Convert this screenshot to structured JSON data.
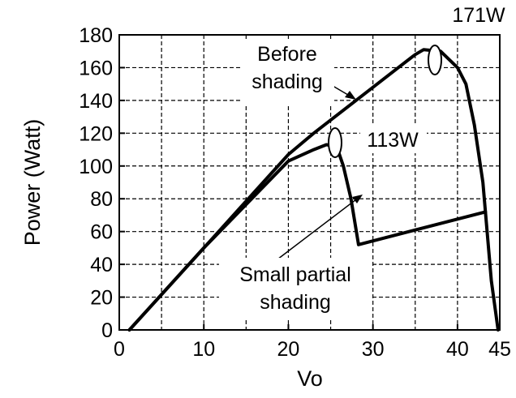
{
  "chart_data": {
    "type": "line",
    "title": "",
    "xlabel": "Vo",
    "ylabel": "Power (Watt)",
    "xlim": [
      0,
      45
    ],
    "ylim": [
      0,
      180
    ],
    "grid": true,
    "x_ticks": [
      0,
      10,
      20,
      30,
      40,
      45
    ],
    "x_tick_labels": [
      "0",
      "10",
      "20",
      "30",
      "40",
      "45"
    ],
    "y_ticks": [
      0,
      20,
      40,
      60,
      80,
      100,
      120,
      140,
      160,
      180
    ],
    "y_tick_labels": [
      "0",
      "20",
      "40",
      "60",
      "80",
      "100",
      "120",
      "140",
      "160",
      "180"
    ],
    "series": [
      {
        "points": [
          [
            1.2,
            0
          ],
          [
            10,
            50
          ],
          [
            20,
            107
          ],
          [
            23,
            120
          ],
          [
            30,
            148
          ],
          [
            33,
            160
          ],
          [
            35,
            168
          ],
          [
            36,
            171
          ],
          [
            38,
            170
          ],
          [
            40,
            160
          ],
          [
            41,
            150
          ],
          [
            42,
            125
          ],
          [
            43,
            90
          ],
          [
            44,
            30
          ],
          [
            44.8,
            0
          ]
        ]
      },
      {
        "points": [
          [
            1.2,
            0
          ],
          [
            10,
            50
          ],
          [
            20,
            103
          ],
          [
            23,
            110
          ],
          [
            24.5,
            113
          ],
          [
            25.7,
            112
          ],
          [
            26.5,
            100
          ],
          [
            27.4,
            80
          ],
          [
            28.3,
            52
          ],
          [
            43.3,
            72
          ]
        ]
      }
    ],
    "annotations": [
      {
        "text": "171W",
        "x": 36,
        "y": 171
      },
      {
        "text": "Before",
        "x": 40,
        "y": 150
      },
      {
        "text": "shading",
        "x": 40,
        "y": 150
      },
      {
        "text": "113W",
        "x": 24.5,
        "y": 113
      },
      {
        "text": "Small partial",
        "x": 27,
        "y": 78
      },
      {
        "text": "shading",
        "x": 27,
        "y": 78
      }
    ]
  }
}
